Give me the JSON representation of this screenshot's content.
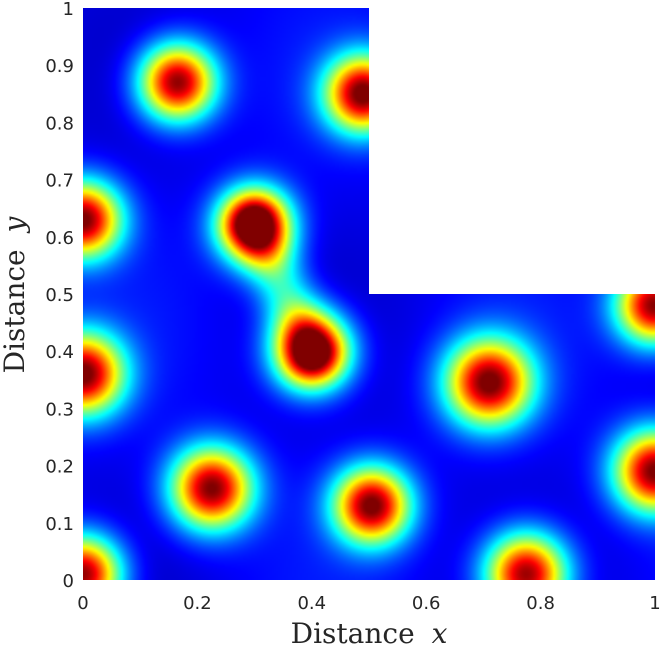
{
  "chart_data": {
    "type": "heatmap",
    "title": "",
    "xlabel": "Distance",
    "xlabel_var": "x",
    "ylabel": "Distance",
    "ylabel_var": "y",
    "xlim": [
      0,
      1
    ],
    "ylim": [
      0,
      1
    ],
    "xticks": [
      "0",
      "0.2",
      "0.4",
      "0.6",
      "0.8",
      "1"
    ],
    "xtick_values": [
      0,
      0.2,
      0.4,
      0.6,
      0.8,
      1
    ],
    "yticks": [
      "0",
      "0.1",
      "0.2",
      "0.3",
      "0.4",
      "0.5",
      "0.6",
      "0.7",
      "0.8",
      "0.9",
      "1"
    ],
    "ytick_values": [
      0,
      0.1,
      0.2,
      0.3,
      0.4,
      0.5,
      0.6,
      0.7,
      0.8,
      0.9,
      1
    ],
    "colormap": "jet",
    "grid": false,
    "domain_shape": "L-shaped: [0,1]x[0,0.5] union [0,0.5]x[0.5,1]",
    "spots": [
      {
        "x": 0.165,
        "y": 0.87,
        "r": 0.075
      },
      {
        "x": 0.49,
        "y": 0.85,
        "r": 0.075
      },
      {
        "x": 0.0,
        "y": 0.63,
        "r": 0.075
      },
      {
        "x": 0.3,
        "y": 0.62,
        "r": 0.072
      },
      {
        "x": 0.4,
        "y": 0.4,
        "r": 0.075
      },
      {
        "x": 0.0,
        "y": 0.36,
        "r": 0.08
      },
      {
        "x": 0.71,
        "y": 0.345,
        "r": 0.085
      },
      {
        "x": 1.0,
        "y": 0.48,
        "r": 0.075
      },
      {
        "x": 0.225,
        "y": 0.16,
        "r": 0.08
      },
      {
        "x": 0.505,
        "y": 0.13,
        "r": 0.075
      },
      {
        "x": 1.0,
        "y": 0.19,
        "r": 0.08
      },
      {
        "x": 0.0,
        "y": 0.01,
        "r": 0.075
      },
      {
        "x": 0.775,
        "y": 0.01,
        "r": 0.08
      }
    ],
    "bridges": [
      {
        "x1": 0.3,
        "y1": 0.62,
        "x2": 0.4,
        "y2": 0.4,
        "level": 0.3
      }
    ]
  }
}
